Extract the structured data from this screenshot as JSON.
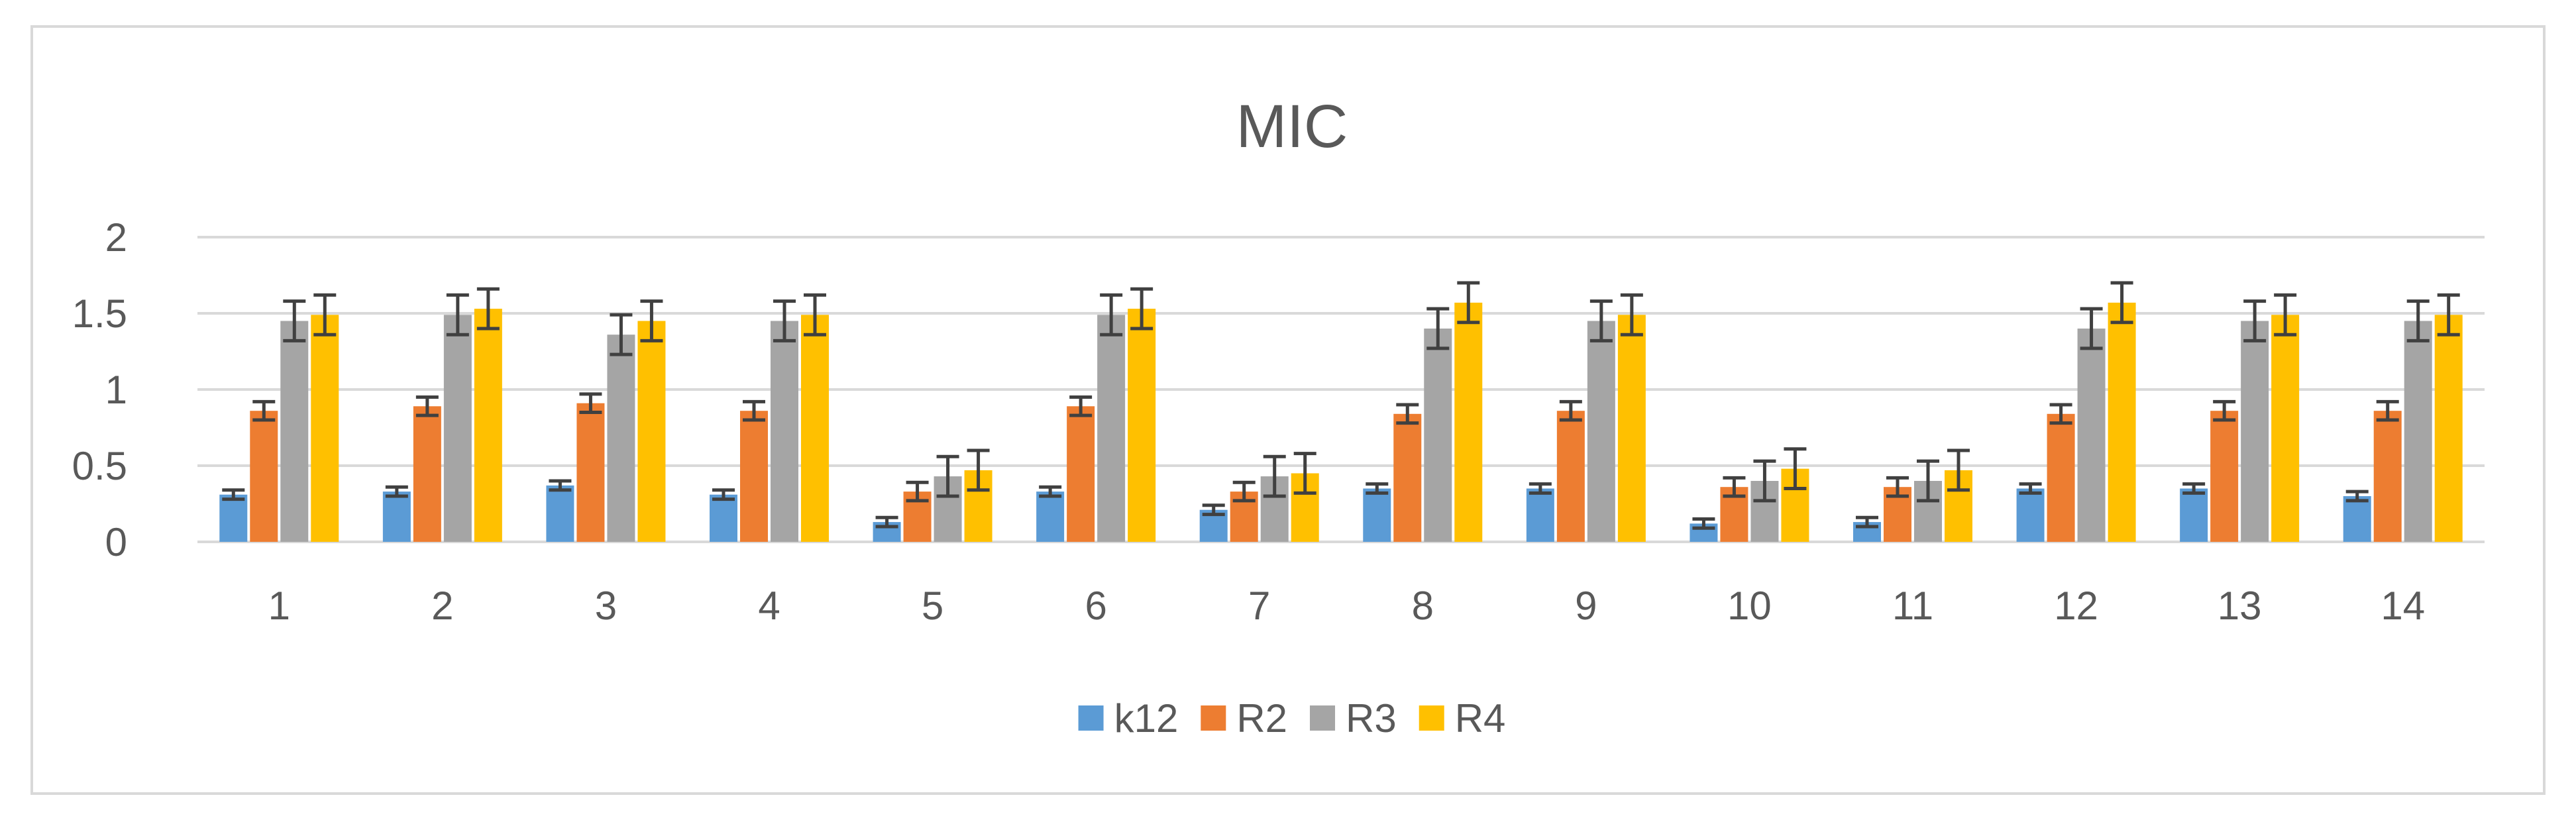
{
  "colors": {
    "k12": "#5b9bd5",
    "R2": "#ed7d31",
    "R3": "#a5a5a5",
    "R4": "#ffc000",
    "grid": "#d9d9d9",
    "errorbar": "#404040",
    "text": "#595959"
  },
  "chart_data": {
    "type": "bar",
    "title": "MIC",
    "xlabel": "",
    "ylabel": "",
    "ylim": [
      0,
      2
    ],
    "yticks": [
      {
        "value": 0,
        "label": "0"
      },
      {
        "value": 0.5,
        "label": "0.5"
      },
      {
        "value": 1,
        "label": "1"
      },
      {
        "value": 1.5,
        "label": "1.5"
      },
      {
        "value": 2,
        "label": "2"
      }
    ],
    "grid": true,
    "legend_position": "bottom",
    "categories": [
      "1",
      "2",
      "3",
      "4",
      "5",
      "6",
      "7",
      "8",
      "9",
      "10",
      "11",
      "12",
      "13",
      "14"
    ],
    "series": [
      {
        "name": "k12",
        "values": [
          0.31,
          0.33,
          0.37,
          0.31,
          0.13,
          0.33,
          0.21,
          0.35,
          0.35,
          0.12,
          0.13,
          0.35,
          0.35,
          0.3
        ],
        "errors": [
          0.03,
          0.03,
          0.03,
          0.03,
          0.03,
          0.03,
          0.03,
          0.03,
          0.03,
          0.03,
          0.03,
          0.03,
          0.03,
          0.03
        ]
      },
      {
        "name": "R2",
        "values": [
          0.86,
          0.89,
          0.91,
          0.86,
          0.33,
          0.89,
          0.33,
          0.84,
          0.86,
          0.36,
          0.36,
          0.84,
          0.86,
          0.86
        ],
        "errors": [
          0.06,
          0.06,
          0.06,
          0.06,
          0.06,
          0.06,
          0.06,
          0.06,
          0.06,
          0.06,
          0.06,
          0.06,
          0.06,
          0.06
        ]
      },
      {
        "name": "R3",
        "values": [
          1.45,
          1.49,
          1.36,
          1.45,
          0.43,
          1.49,
          0.43,
          1.4,
          1.45,
          0.4,
          0.4,
          1.4,
          1.45,
          1.45
        ],
        "errors": [
          0.13,
          0.13,
          0.13,
          0.13,
          0.13,
          0.13,
          0.13,
          0.13,
          0.13,
          0.13,
          0.13,
          0.13,
          0.13,
          0.13
        ]
      },
      {
        "name": "R4",
        "values": [
          1.49,
          1.53,
          1.45,
          1.49,
          0.47,
          1.53,
          0.45,
          1.57,
          1.49,
          0.48,
          0.47,
          1.57,
          1.49,
          1.49
        ],
        "errors": [
          0.13,
          0.13,
          0.13,
          0.13,
          0.13,
          0.13,
          0.13,
          0.13,
          0.13,
          0.13,
          0.13,
          0.13,
          0.13,
          0.13
        ]
      }
    ]
  }
}
